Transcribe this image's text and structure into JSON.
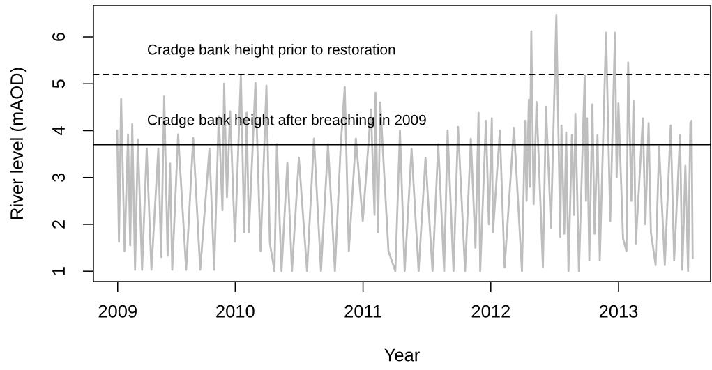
{
  "chart_data": {
    "type": "line",
    "xlabel": "Year",
    "ylabel": "River level (mAOD)",
    "xlim": [
      2008.89,
      2013.72
    ],
    "ylim": [
      0.78,
      6.67
    ],
    "xticks": [
      {
        "value": 2009.08,
        "label": "2009"
      },
      2010,
      2011,
      2012,
      2013
    ],
    "yticks": [
      1,
      2,
      3,
      4,
      5,
      6
    ],
    "series": [
      {
        "color": "#bebebe",
        "x": [
          2009.076,
          2009.09,
          2009.107,
          2009.134,
          2009.161,
          2009.178,
          2009.194,
          2009.216,
          2009.238,
          2009.271,
          2009.307,
          2009.344,
          2009.398,
          2009.42,
          2009.444,
          2009.471,
          2009.49,
          2009.507,
          2009.553,
          2009.616,
          2009.671,
          2009.726,
          2009.798,
          2009.835,
          2009.871,
          2009.9,
          2009.913,
          2009.935,
          2009.96,
          2009.998,
          2010.044,
          2010.07,
          2010.089,
          2010.107,
          2010.158,
          2010.198,
          2010.244,
          2010.271,
          2010.307,
          2010.326,
          2010.362,
          2010.408,
          2010.444,
          2010.498,
          2010.562,
          2010.616,
          2010.671,
          2010.726,
          2010.78,
          2010.825,
          2010.857,
          2010.889,
          2010.944,
          2010.998,
          2011.062,
          2011.09,
          2011.098,
          2011.117,
          2011.135,
          2011.199,
          2011.253,
          2011.289,
          2011.326,
          2011.38,
          2011.435,
          2011.489,
          2011.544,
          2011.589,
          2011.635,
          2011.662,
          2011.708,
          2011.744,
          2011.799,
          2011.844,
          2011.88,
          2011.904,
          2011.917,
          2011.962,
          2011.985,
          2012.008,
          2012.017,
          2012.071,
          2012.108,
          2012.181,
          2012.244,
          2012.268,
          2012.28,
          2012.298,
          2012.305,
          2012.317,
          2012.335,
          2012.358,
          2012.408,
          2012.432,
          2012.471,
          2012.513,
          2012.544,
          2012.553,
          2012.575,
          2012.59,
          2012.608,
          2012.635,
          2012.65,
          2012.662,
          2012.69,
          2012.735,
          2012.745,
          2012.753,
          2012.771,
          2012.795,
          2012.812,
          2012.835,
          2012.853,
          2012.902,
          2012.935,
          2012.972,
          2012.985,
          2012.999,
          2013.035,
          2013.062,
          2013.075,
          2013.1,
          2013.117,
          2013.135,
          2013.19,
          2013.21,
          2013.235,
          2013.253,
          2013.29,
          2013.317,
          2013.362,
          2013.408,
          2013.435,
          2013.481,
          2013.499,
          2013.523,
          2013.544,
          2013.562,
          2013.571,
          2013.58
        ],
        "values": [
          4.0,
          1.63,
          4.68,
          1.43,
          3.92,
          1.55,
          4.14,
          1.03,
          3.81,
          1.03,
          3.62,
          1.03,
          3.62,
          1.3,
          4.73,
          1.33,
          3.3,
          1.03,
          3.92,
          1.03,
          3.84,
          1.03,
          3.62,
          1.03,
          4.31,
          2.3,
          5.0,
          2.58,
          4.41,
          1.63,
          5.18,
          1.83,
          4.38,
          1.83,
          5.02,
          1.43,
          4.96,
          1.6,
          1.0,
          3.71,
          1.0,
          3.32,
          1.0,
          3.42,
          1.0,
          3.83,
          1.0,
          3.71,
          1.0,
          3.66,
          4.93,
          1.43,
          3.83,
          2.07,
          4.45,
          2.2,
          4.81,
          1.83,
          4.6,
          1.43,
          1.0,
          4.0,
          1.0,
          3.61,
          1.0,
          3.42,
          1.0,
          3.71,
          1.0,
          4.0,
          1.0,
          4.08,
          1.0,
          3.83,
          1.5,
          4.38,
          1.0,
          4.21,
          2.0,
          4.26,
          1.83,
          4.0,
          1.08,
          4.06,
          1.0,
          4.21,
          2.5,
          4.66,
          2.8,
          6.12,
          2.43,
          4.61,
          1.09,
          4.51,
          1.93,
          6.47,
          1.73,
          4.11,
          1.8,
          3.96,
          1.0,
          3.91,
          2.2,
          4.36,
          1.0,
          5.18,
          2.5,
          4.26,
          1.23,
          4.56,
          1.8,
          3.91,
          1.23,
          6.09,
          2.07,
          6.09,
          3.0,
          4.58,
          1.7,
          1.43,
          5.45,
          2.5,
          4.63,
          1.58,
          4.26,
          2.0,
          4.16,
          1.83,
          1.13,
          3.66,
          1.13,
          4.11,
          1.23,
          3.91,
          1.03,
          3.25,
          1.0,
          4.16,
          4.21,
          1.28
        ]
      }
    ],
    "ref_lines": [
      {
        "axis": "y",
        "value": 5.2,
        "label": "Cradge bank height prior to restoration",
        "line_style": "dashed",
        "color": "#000000"
      },
      {
        "axis": "y",
        "value": 3.7,
        "label": "Cradge bank height after breaching in 2009",
        "line_style": "solid",
        "color": "#000000"
      }
    ]
  }
}
